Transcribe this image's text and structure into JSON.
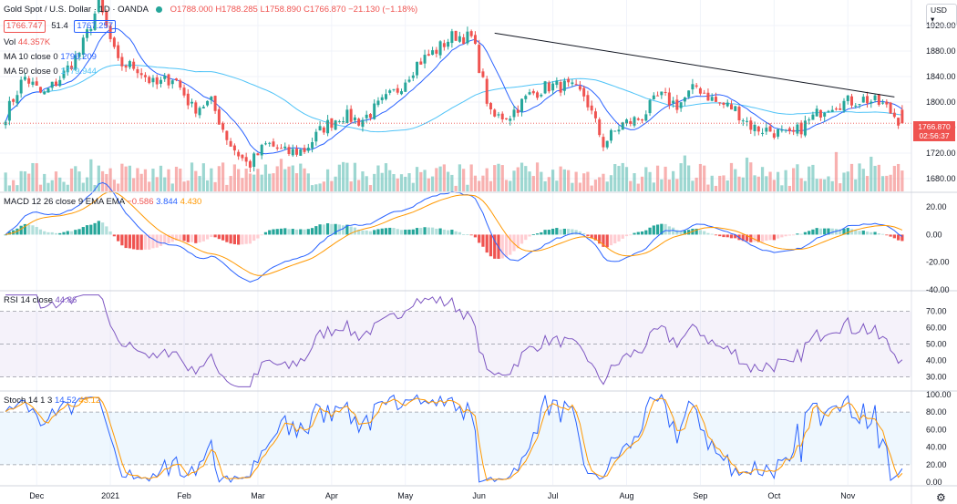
{
  "header": {
    "symbol": "Gold Spot / U.S. Dollar · 1D · OANDA",
    "ohlc": "O1788.000  H1788.285  L1758.890  C1766.870  −21.130 (−1.18%)",
    "bid": "1766.747",
    "spread": "51.4",
    "ask": "1767.257",
    "vol_label": "Vol",
    "vol_value": "44.357K",
    "ma10_label": "MA 10 close 0",
    "ma10_value": "1790.209",
    "ma50_label": "MA 50 close 0",
    "ma50_value": "1779.944"
  },
  "currency_button": "USD ▾",
  "price_tag": {
    "price": "1766.870",
    "countdown": "02:56:37"
  },
  "colors": {
    "up": "#26a69a",
    "down": "#ef5350",
    "ma10": "#2962ff",
    "ma50": "#4fc3f7",
    "signal": "#ff9800",
    "rsi": "#7e57c2",
    "stoch_k": "#2962ff",
    "stoch_d": "#ff9800"
  },
  "chart_data": [
    {
      "type": "candlestick",
      "title": "Gold Spot / U.S. Dollar",
      "x_ticks": [
        "Dec",
        "2021",
        "Feb",
        "Mar",
        "Apr",
        "May",
        "Jun",
        "Jul",
        "Aug",
        "Sep",
        "Oct",
        "Nov"
      ],
      "ylim": [
        1660,
        1960
      ],
      "y_ticks": [
        1680,
        1720,
        1760,
        1800,
        1840,
        1880,
        1920
      ],
      "close_anchors": [
        1780,
        1840,
        1810,
        1840,
        1880,
        1955,
        1860,
        1855,
        1825,
        1840,
        1790,
        1800,
        1735,
        1700,
        1735,
        1720,
        1725,
        1760,
        1780,
        1770,
        1795,
        1820,
        1860,
        1880,
        1905,
        1900,
        1775,
        1780,
        1810,
        1825,
        1825,
        1810,
        1735,
        1765,
        1775,
        1810,
        1795,
        1825,
        1800,
        1790,
        1760,
        1755,
        1745,
        1770,
        1795,
        1800,
        1805,
        1795,
        1767
      ],
      "trendline": {
        "from": [
          1908,
          1808
        ]
      },
      "series": [
        {
          "name": "MA 10 close 0",
          "last": 1790.209
        },
        {
          "name": "MA 50 close 0",
          "last": 1779.944
        }
      ],
      "volume_last": "44.357K"
    },
    {
      "type": "line",
      "title": "MACD 12 26 close 9 EMA EMA",
      "values_label": [
        "−0.586",
        "3.844",
        "4.430"
      ],
      "ylim": [
        -40,
        30
      ],
      "y_ticks": [
        20,
        0,
        -20,
        -40
      ]
    },
    {
      "type": "line",
      "title": "RSI 14 close",
      "value": "44.86",
      "ylim": [
        22,
        82
      ],
      "y_ticks": [
        70,
        60,
        50,
        40,
        30
      ],
      "bands": [
        30,
        50,
        70
      ]
    },
    {
      "type": "line",
      "title": "Stoch 14 1 3",
      "values_label": [
        "14.52",
        "43.12"
      ],
      "ylim": [
        -3,
        103
      ],
      "y_ticks": [
        100,
        80,
        60,
        40,
        20,
        0
      ],
      "bands": [
        20,
        80
      ]
    }
  ]
}
